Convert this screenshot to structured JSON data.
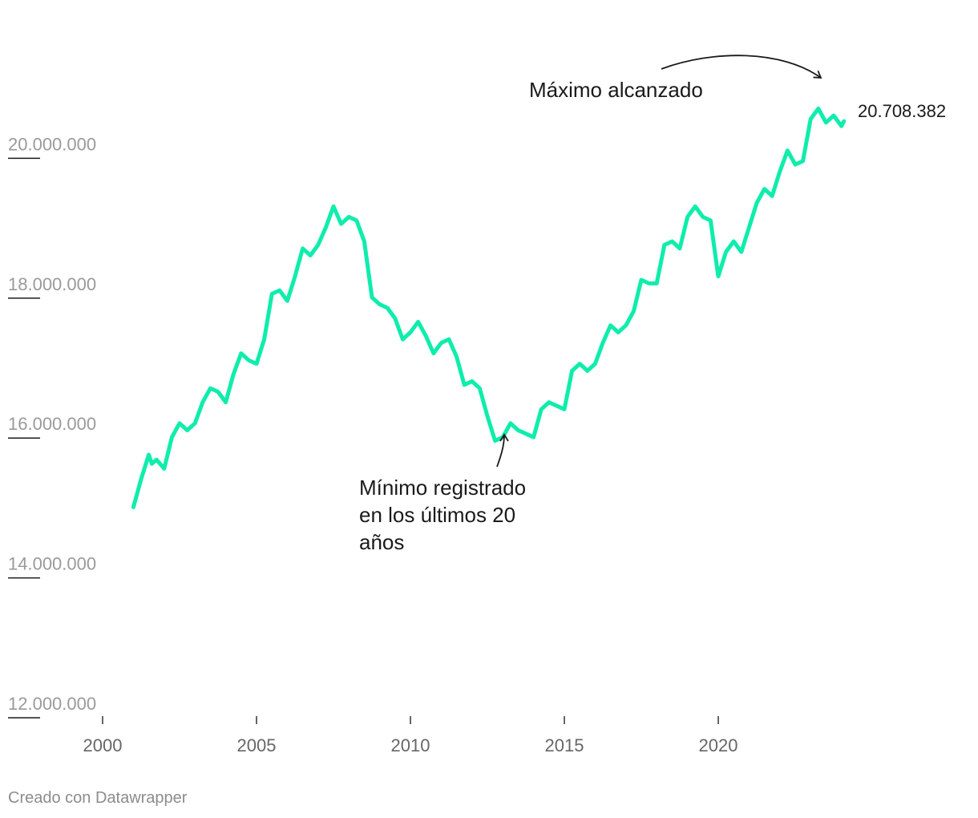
{
  "chart_data": {
    "type": "line",
    "title": "",
    "xlabel": "",
    "ylabel": "",
    "xlim": [
      2000,
      2025.3
    ],
    "ylim": [
      12000000,
      21200000
    ],
    "x_ticks": [
      2000,
      2005,
      2010,
      2015,
      2020
    ],
    "x_tick_labels": [
      "2000",
      "2005",
      "2010",
      "2015",
      "2020"
    ],
    "y_ticks": [
      12000000,
      14000000,
      16000000,
      18000000,
      20000000
    ],
    "y_tick_labels": [
      "12.000.000",
      "14.000.000",
      "16.000.000",
      "18.000.000",
      "20.000.000"
    ],
    "grid": false,
    "series": [
      {
        "color": "#0eedac",
        "x": [
          2001.0,
          2001.25,
          2001.5,
          2001.6,
          2001.75,
          2002.0,
          2002.25,
          2002.5,
          2002.75,
          2003.0,
          2003.25,
          2003.5,
          2003.75,
          2004.0,
          2004.25,
          2004.5,
          2004.75,
          2005.0,
          2005.25,
          2005.5,
          2005.75,
          2006.0,
          2006.25,
          2006.5,
          2006.75,
          2007.0,
          2007.25,
          2007.5,
          2007.75,
          2008.0,
          2008.25,
          2008.5,
          2008.75,
          2009.0,
          2009.25,
          2009.5,
          2009.75,
          2010.0,
          2010.25,
          2010.5,
          2010.75,
          2011.0,
          2011.25,
          2011.5,
          2011.75,
          2012.0,
          2012.25,
          2012.5,
          2012.75,
          2013.0,
          2013.25,
          2013.5,
          2013.75,
          2014.0,
          2014.25,
          2014.5,
          2014.75,
          2015.0,
          2015.25,
          2015.5,
          2015.75,
          2016.0,
          2016.25,
          2016.5,
          2016.75,
          2017.0,
          2017.25,
          2017.5,
          2017.75,
          2018.0,
          2018.25,
          2018.5,
          2018.75,
          2019.0,
          2019.25,
          2019.5,
          2019.75,
          2020.0,
          2020.25,
          2020.5,
          2020.75,
          2021.0,
          2021.25,
          2021.5,
          2021.75,
          2022.0,
          2022.25,
          2022.5,
          2022.75,
          2023.0,
          2023.25,
          2023.5,
          2023.75,
          2024.0,
          2024.08
        ],
        "values": [
          15000000,
          15400000,
          15750000,
          15620000,
          15680000,
          15550000,
          16000000,
          16200000,
          16100000,
          16200000,
          16500000,
          16700000,
          16650000,
          16500000,
          16900000,
          17200000,
          17100000,
          17050000,
          17400000,
          18050000,
          18100000,
          17950000,
          18300000,
          18700000,
          18600000,
          18750000,
          19000000,
          19300000,
          19050000,
          19150000,
          19100000,
          18800000,
          18000000,
          17900000,
          17850000,
          17700000,
          17400000,
          17500000,
          17650000,
          17450000,
          17200000,
          17350000,
          17400000,
          17150000,
          16750000,
          16800000,
          16700000,
          16300000,
          15950000,
          16000000,
          16200000,
          16100000,
          16050000,
          16000000,
          16400000,
          16500000,
          16450000,
          16400000,
          16950000,
          17050000,
          16950000,
          17050000,
          17350000,
          17600000,
          17500000,
          17600000,
          17800000,
          18250000,
          18200000,
          18200000,
          18750000,
          18800000,
          18700000,
          19150000,
          19300000,
          19150000,
          19100000,
          18300000,
          18650000,
          18800000,
          18650000,
          19000000,
          19350000,
          19550000,
          19450000,
          19800000,
          20100000,
          19900000,
          19950000,
          20550000,
          20700000,
          20500000,
          20600000,
          20450000,
          20520000
        ]
      }
    ],
    "end_label": "20.708.382",
    "annotations": [
      {
        "text": "Máximo alcanzado"
      },
      {
        "text_lines": [
          "Mínimo registrado",
          "en los últimos 20",
          "años"
        ]
      }
    ]
  },
  "footer": {
    "credit": "Creado con Datawrapper"
  }
}
